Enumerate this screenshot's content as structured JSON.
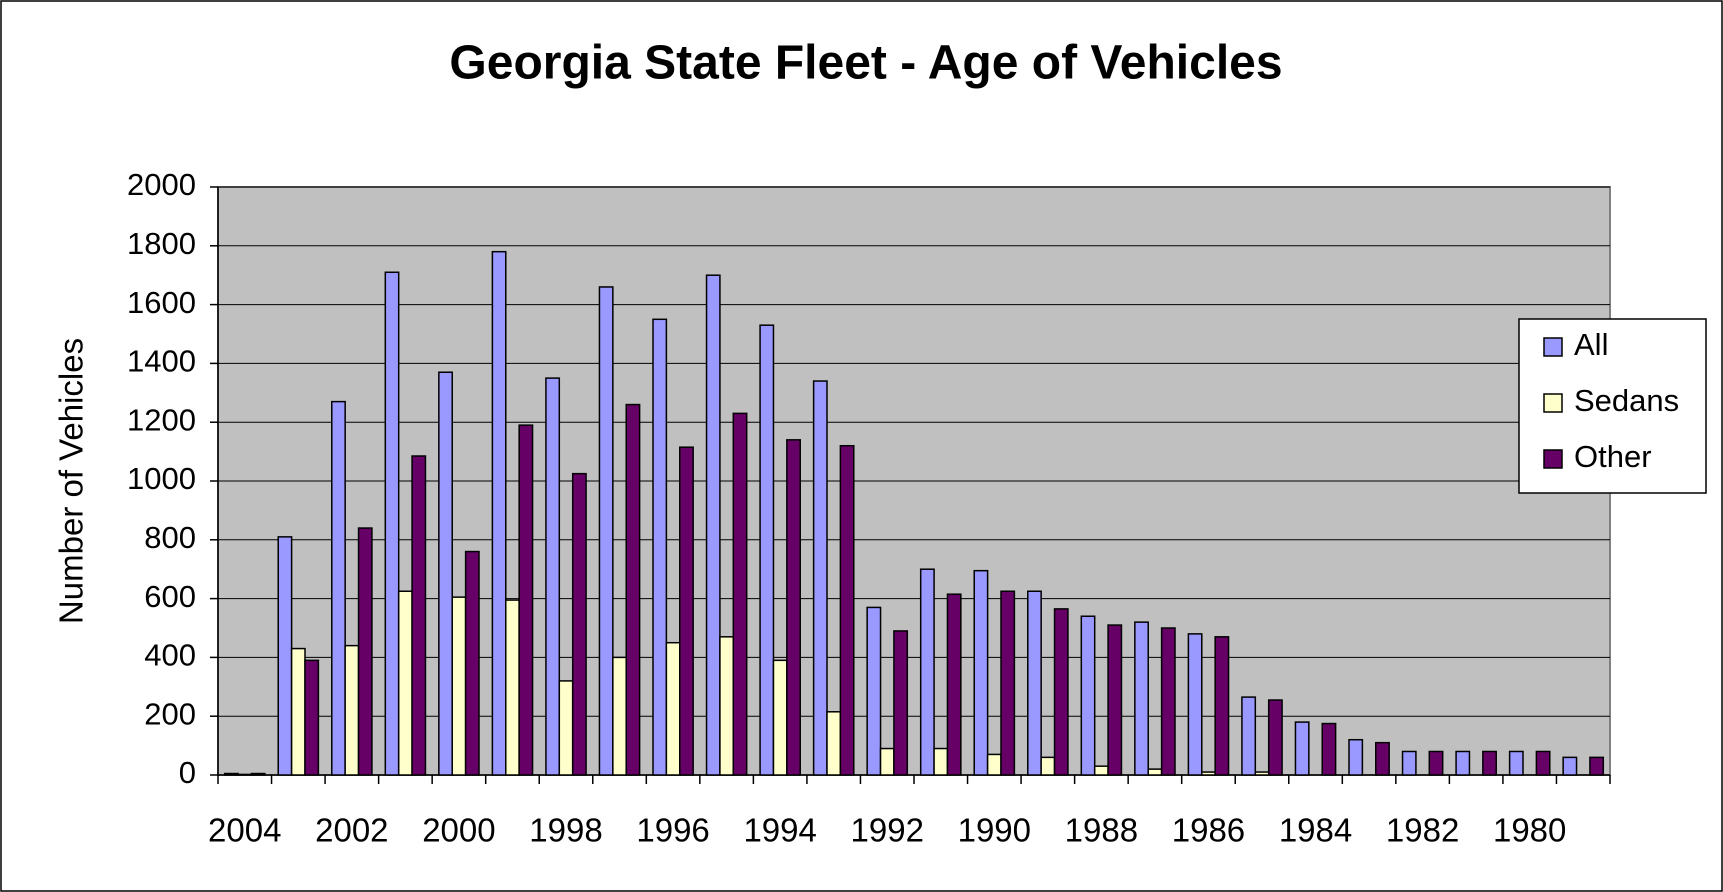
{
  "chart_data": {
    "type": "bar",
    "title": "Georgia State Fleet - Age of Vehicles",
    "y_label": "Number of Vehicles",
    "categories": [
      "2004",
      null,
      "2002",
      null,
      "2000",
      null,
      "1998",
      null,
      "1996",
      null,
      "1994",
      null,
      "1992",
      null,
      "1990",
      null,
      "1988",
      null,
      "1986",
      null,
      "1984",
      null,
      "1982",
      null,
      "1980",
      null
    ],
    "series": [
      {
        "name": "All",
        "color": "#9999ff",
        "values": [
          5,
          810,
          1270,
          1710,
          1370,
          1780,
          1350,
          1660,
          1550,
          1700,
          1530,
          1340,
          570,
          700,
          695,
          625,
          540,
          520,
          480,
          265,
          180,
          120,
          80,
          80,
          80,
          60
        ]
      },
      {
        "name": "Sedans",
        "color": "#ffffcc",
        "values": [
          2,
          430,
          440,
          625,
          605,
          595,
          320,
          400,
          450,
          470,
          390,
          215,
          90,
          90,
          70,
          60,
          30,
          20,
          10,
          10,
          0,
          0,
          0,
          0,
          0,
          0
        ]
      },
      {
        "name": "Other",
        "color": "#660066",
        "values": [
          5,
          390,
          840,
          1085,
          760,
          1190,
          1025,
          1260,
          1115,
          1230,
          1140,
          1120,
          490,
          615,
          625,
          565,
          510,
          500,
          470,
          255,
          175,
          110,
          80,
          80,
          80,
          60
        ]
      }
    ],
    "ylim": [
      0,
      2000
    ],
    "yticks": [
      0,
      200,
      400,
      600,
      800,
      1000,
      1200,
      1400,
      1600,
      1800,
      2000
    ],
    "grid": true,
    "legend": "right",
    "plot_background": "#c0c0c0"
  }
}
